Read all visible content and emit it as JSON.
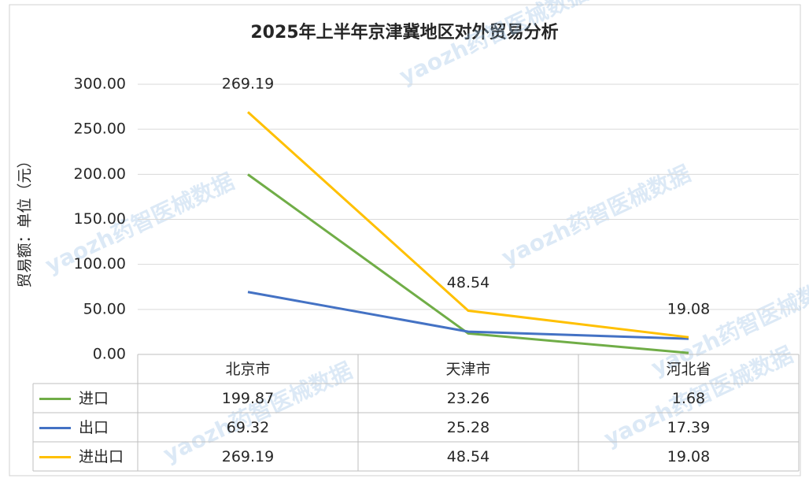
{
  "chart_data": {
    "type": "line",
    "title": "2025年上半年京津冀地区对外贸易分析",
    "y_label": "贸易额：单位（元）",
    "watermark": "yaozh药智医械数据",
    "categories": [
      "北京市",
      "天津市",
      "河北省"
    ],
    "series": [
      {
        "name": "进口",
        "color": "#70ad47",
        "values": [
          199.87,
          23.26,
          1.68
        ]
      },
      {
        "name": "出口",
        "color": "#4472c4",
        "values": [
          69.32,
          25.28,
          17.39
        ]
      },
      {
        "name": "进出口",
        "color": "#ffc000",
        "values": [
          269.19,
          48.54,
          19.08
        ],
        "show_labels": true
      }
    ],
    "ylim": [
      0,
      300
    ],
    "yticks": [
      {
        "value": 0,
        "label": "0.00"
      },
      {
        "value": 50,
        "label": "50.00"
      },
      {
        "value": 100,
        "label": "100.00"
      },
      {
        "value": 150,
        "label": "150.00"
      },
      {
        "value": 200,
        "label": "200.00"
      },
      {
        "value": 250,
        "label": "250.00"
      },
      {
        "value": 300,
        "label": "300.00"
      }
    ],
    "grid": true,
    "data_table": true
  }
}
